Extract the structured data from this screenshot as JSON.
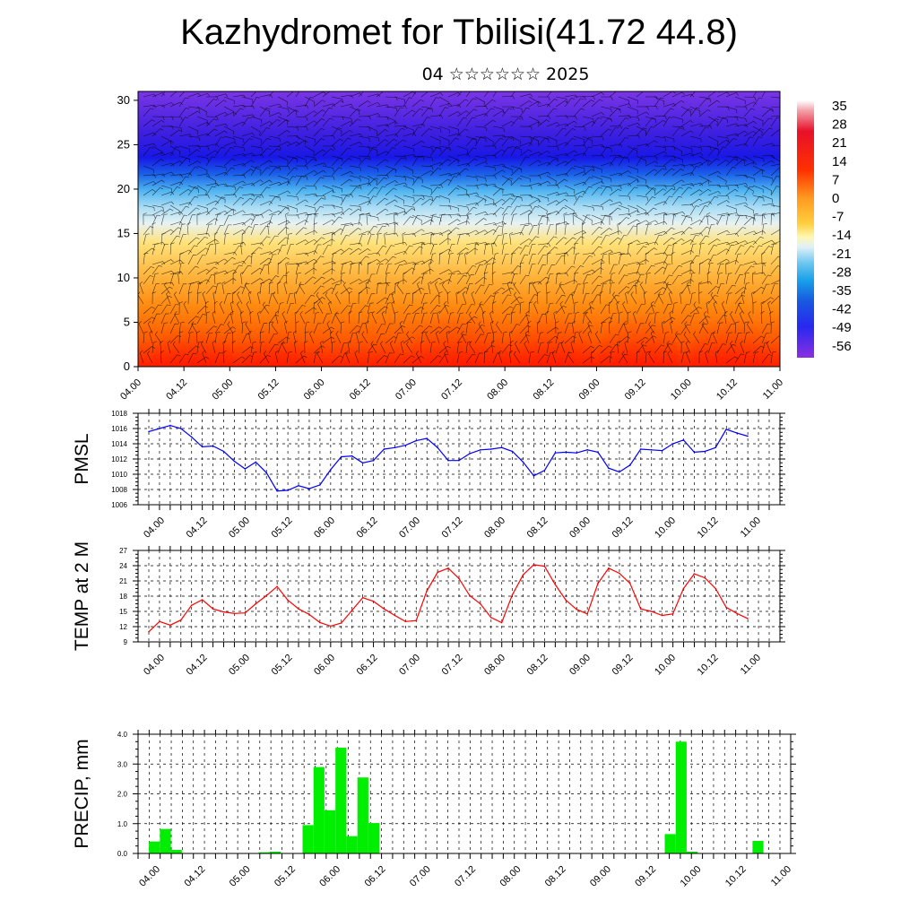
{
  "title": "Kazhydromet for Tbilisi(41.72 44.8)",
  "subtitle": "04 ☆☆☆☆☆☆ 2025",
  "time_labels": [
    "04.00",
    "04.12",
    "05.00",
    "05.12",
    "06.00",
    "06.12",
    "07.00",
    "07.12",
    "08.00",
    "08.12",
    "09.00",
    "09.12",
    "10.00",
    "10.12",
    "11.00"
  ],
  "colors": {
    "pmsl_line": "#0000ff",
    "temp_line": "#ff0000",
    "precip_bar": "#00ee00"
  },
  "chart_data": [
    {
      "type": "heatmap",
      "name": "temperature-wind cross-section",
      "title": "",
      "xlabel": "",
      "ylabel": "",
      "ylim": [
        0,
        31
      ],
      "y_ticks": [
        "0",
        "5",
        "10",
        "15",
        "20",
        "25",
        "30"
      ],
      "x_ticks": [
        "04.00",
        "04.12",
        "05.00",
        "05.12",
        "06.00",
        "06.12",
        "07.00",
        "07.12",
        "08.00",
        "08.12",
        "09.00",
        "09.12",
        "10.00",
        "10.12",
        "11.00"
      ],
      "colorbar_labels": [
        "35",
        "28",
        "21",
        "14",
        "7",
        "0",
        "-7",
        "-14",
        "-21",
        "-28",
        "-35",
        "-42",
        "-49",
        "-56"
      ],
      "colorbar_range": [
        -63,
        42
      ],
      "overlay": "wind barbs"
    },
    {
      "type": "line",
      "ylabel": "PMSL",
      "ylim": [
        1006,
        1018
      ],
      "y_ticks": [
        "1006",
        "1008",
        "1010",
        "1012",
        "1014",
        "1016",
        "1018"
      ],
      "x_ticks": [
        "04.00",
        "04.12",
        "05.00",
        "05.12",
        "06.00",
        "06.12",
        "07.00",
        "07.12",
        "08.00",
        "08.12",
        "09.00",
        "09.12",
        "10.00",
        "10.12",
        "11.00"
      ],
      "grid": true,
      "series": [
        {
          "values": [
            1015.6,
            1016.0,
            1016.4,
            1016.0,
            1014.9,
            1013.6,
            1013.7,
            1013.0,
            1011.7,
            1010.7,
            1011.6,
            1010.2,
            1007.8,
            1007.9,
            1008.5,
            1008.1,
            1008.6,
            1010.6,
            1012.3,
            1012.4,
            1011.5,
            1011.8,
            1013.3,
            1013.5,
            1013.8,
            1014.4,
            1014.7,
            1013.5,
            1011.8,
            1011.8,
            1012.7,
            1013.2,
            1013.3,
            1013.5,
            1013.0,
            1011.6,
            1009.8,
            1010.5,
            1012.8,
            1012.9,
            1012.8,
            1013.2,
            1012.9,
            1010.8,
            1010.3,
            1011.2,
            1013.3,
            1013.2,
            1013.1,
            1014.0,
            1014.5,
            1012.9,
            1013.0,
            1013.5,
            1015.9,
            1015.4,
            1015.0
          ]
        }
      ]
    },
    {
      "type": "line",
      "ylabel": "TEMP at 2 M",
      "ylim": [
        9,
        27
      ],
      "y_ticks": [
        "9",
        "12",
        "15",
        "18",
        "21",
        "24",
        "27"
      ],
      "x_ticks": [
        "04.00",
        "04.12",
        "05.00",
        "05.12",
        "06.00",
        "06.12",
        "07.00",
        "07.12",
        "08.00",
        "08.12",
        "09.00",
        "09.12",
        "10.00",
        "10.12",
        "11.00"
      ],
      "grid": true,
      "series": [
        {
          "values": [
            11.0,
            13.0,
            12.3,
            13.3,
            16.2,
            17.3,
            15.5,
            14.9,
            14.6,
            14.7,
            16.5,
            18.1,
            19.9,
            17.2,
            15.5,
            14.4,
            12.8,
            12.1,
            12.7,
            15.2,
            17.7,
            17.0,
            15.5,
            14.2,
            13.0,
            13.2,
            19.0,
            22.7,
            23.5,
            21.5,
            18.1,
            16.5,
            13.8,
            12.8,
            18.3,
            22.2,
            24.2,
            23.9,
            20.3,
            17.2,
            15.4,
            14.5,
            20.5,
            23.5,
            22.5,
            20.5,
            15.5,
            15.0,
            14.2,
            14.5,
            19.5,
            22.4,
            21.6,
            19.5,
            15.8,
            14.6,
            13.6
          ]
        }
      ]
    },
    {
      "type": "bar",
      "ylabel": "PRECIP, mm",
      "ylim": [
        0,
        4
      ],
      "y_ticks": [
        "0.0",
        "1.0",
        "2.0",
        "3.0",
        "4.0"
      ],
      "x_ticks": [
        "04.00",
        "04.12",
        "05.00",
        "05.12",
        "06.00",
        "06.12",
        "07.00",
        "07.12",
        "08.00",
        "08.12",
        "09.00",
        "09.12",
        "10.00",
        "10.12",
        "11.00"
      ],
      "grid": true,
      "series": [
        {
          "values": [
            0,
            0.4,
            0.82,
            0.12,
            0,
            0,
            0,
            0,
            0,
            0,
            0,
            0.04,
            0.06,
            0,
            0,
            0.95,
            2.9,
            1.45,
            3.55,
            0.58,
            2.55,
            1.02,
            0,
            0,
            0,
            0,
            0,
            0,
            0,
            0,
            0,
            0,
            0,
            0,
            0,
            0,
            0,
            0,
            0,
            0,
            0,
            0,
            0,
            0,
            0,
            0,
            0,
            0,
            0.65,
            3.75,
            0.06,
            0,
            0,
            0,
            0,
            0,
            0.42,
            0,
            0
          ]
        }
      ]
    }
  ]
}
